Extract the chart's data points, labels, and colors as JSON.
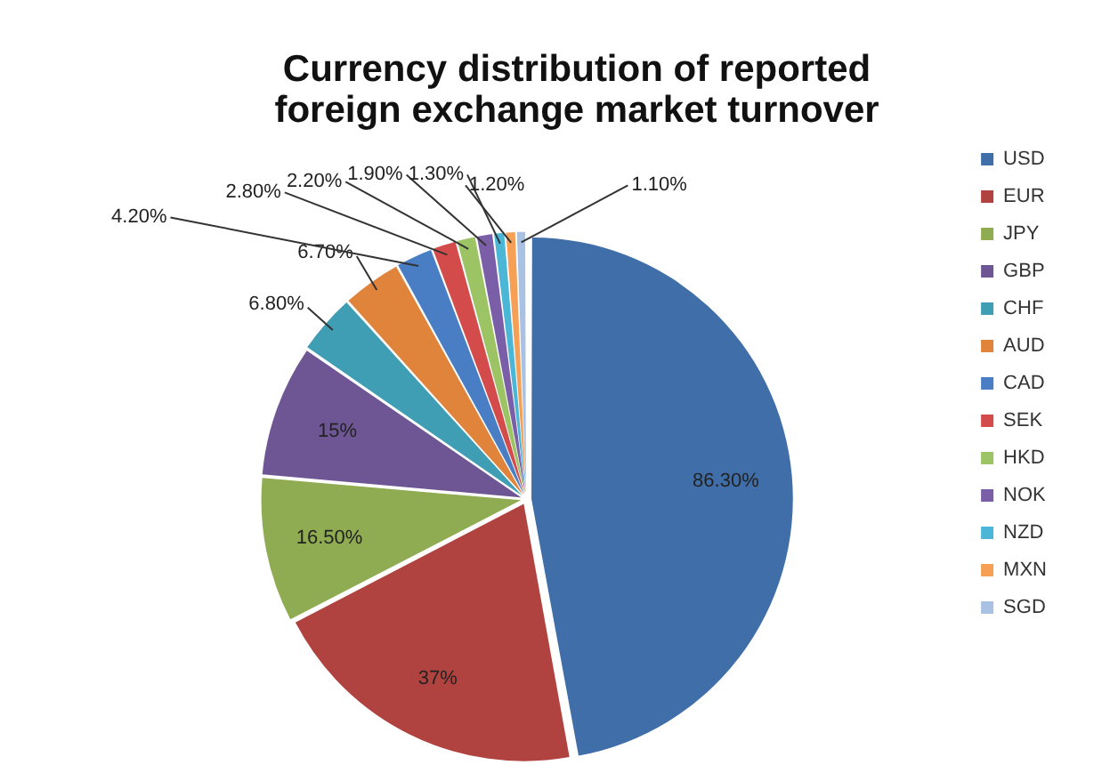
{
  "chart_data": {
    "type": "pie",
    "title": "Currency distribution of reported foreign exchange market turnover",
    "categories": [
      "USD",
      "EUR",
      "JPY",
      "GBP",
      "CHF",
      "AUD",
      "CAD",
      "SEK",
      "HKD",
      "NOK",
      "NZD",
      "MXN",
      "SGD"
    ],
    "values": [
      86.3,
      37,
      16.5,
      15,
      6.8,
      6.7,
      4.2,
      2.8,
      2.2,
      1.9,
      1.3,
      1.2,
      1.1
    ],
    "value_labels": [
      "86.30%",
      "37%",
      "16.50%",
      "15%",
      "6.80%",
      "6.70%",
      "4.20%",
      "2.80%",
      "2.20%",
      "1.90%",
      "1.30%",
      "1.20%",
      "1.10%"
    ],
    "colors": [
      "#3f6ea8",
      "#b04340",
      "#8fac52",
      "#6e5594",
      "#3f9db4",
      "#e0843c",
      "#4a7ec4",
      "#d34b4b",
      "#9cc464",
      "#7a5fa8",
      "#4cb6d6",
      "#f5a055",
      "#a9c1e3"
    ],
    "legend": "right"
  }
}
